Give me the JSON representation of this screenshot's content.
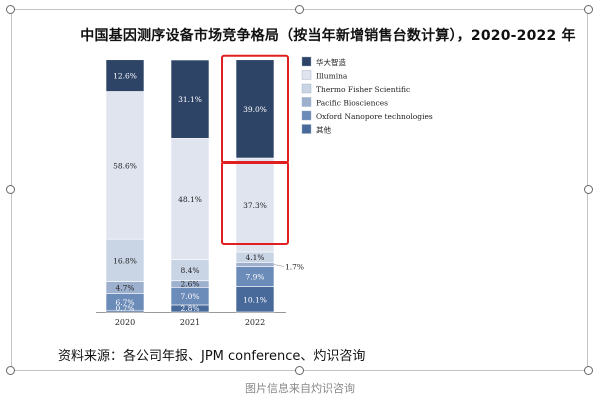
{
  "chart_data": {
    "type": "bar",
    "stacked": true,
    "title": "中国基因测序设备市场竞争格局（按当年新增销售台数计算），2020-2022 年",
    "categories": [
      "2020",
      "2021",
      "2022"
    ],
    "series": [
      {
        "name": "其他",
        "values": [
          0.7,
          2.8,
          10.1
        ],
        "labels": [
          "0.7%",
          "2.8%",
          "10.1%"
        ],
        "color": "#486a9a"
      },
      {
        "name": "Oxford Nanopore technologies",
        "values": [
          6.7,
          7.0,
          7.9
        ],
        "labels": [
          "6.7%",
          "7.0%",
          "7.9%"
        ],
        "color": "#6b8bb8"
      },
      {
        "name": "Pacific Biosciences",
        "values": [
          4.7,
          2.6,
          1.7
        ],
        "labels": [
          "4.7%",
          "2.6%",
          "1.7%"
        ],
        "color": "#9db1cf"
      },
      {
        "name": "Thermo Fisher Scientific",
        "values": [
          16.8,
          8.4,
          4.1
        ],
        "labels": [
          "16.8%",
          "8.4%",
          "4.1%"
        ],
        "color": "#c9d4e5"
      },
      {
        "name": "Illumina",
        "values": [
          58.6,
          48.1,
          37.3
        ],
        "labels": [
          "58.6%",
          "48.1%",
          "37.3%"
        ],
        "color": "#dfe4ef"
      },
      {
        "name": "华大智造",
        "values": [
          12.6,
          31.1,
          39.0
        ],
        "labels": [
          "12.6%",
          "31.1%",
          "39.0%"
        ],
        "color": "#2e4467"
      }
    ],
    "ylim": [
      0,
      100
    ],
    "xlabel": "",
    "ylabel": "",
    "legend_position": "right",
    "legend_order": [
      "华大智造",
      "Illumina",
      "Thermo Fisher Scientific",
      "Pacific Biosciences",
      "Oxford Nanopore technologies",
      "其他"
    ],
    "highlight_color": "#e02020",
    "grid": false
  },
  "source_text": "资料来源：各公司年报、JPM conference、灼识咨询",
  "caption": "图片信息来自灼识咨询"
}
